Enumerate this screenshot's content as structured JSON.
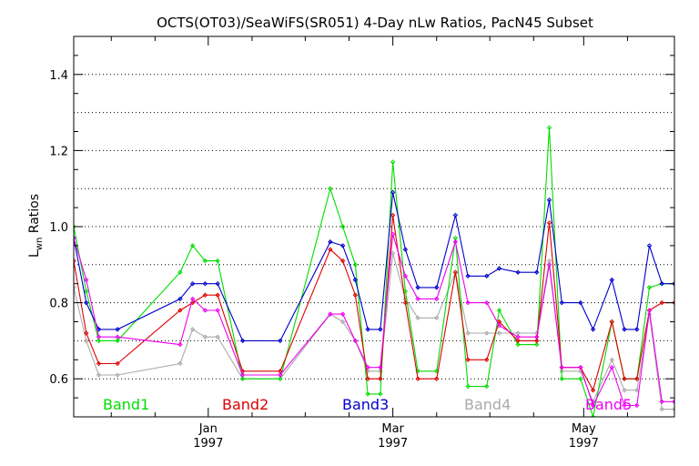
{
  "chart_data": {
    "type": "line",
    "title": "OCTS(OT03)/SeaWiFS(SR051) 4-Day nLw Ratios, PacN45 Subset",
    "ylabel_main": "L",
    "ylabel_sub": "wn",
    "ylabel_rest": " Ratios",
    "ylim": [
      0.5,
      1.5
    ],
    "yticks": [
      0.6,
      0.8,
      1.0,
      1.2,
      1.4
    ],
    "ytick_labels": [
      "0.6",
      "0.8",
      "1.0",
      "1.2",
      "1.4"
    ],
    "grid": "horizontal dotted",
    "xlim": [
      "1996-11-19",
      "1997-05-30"
    ],
    "xticks": [
      {
        "date": "1997-01-01",
        "month": "Jan",
        "year": "1997"
      },
      {
        "date": "1997-03-01",
        "month": "Mar",
        "year": "1997"
      },
      {
        "date": "1997-05-01",
        "month": "May",
        "year": "1997"
      }
    ],
    "x": [
      "1996-11-19",
      "1996-11-23",
      "1996-11-27",
      "1996-12-03",
      "1996-12-23",
      "1996-12-27",
      "1996-12-31",
      "1997-01-04",
      "1997-01-12",
      "1997-01-24",
      "1997-02-09",
      "1997-02-13",
      "1997-02-17",
      "1997-02-21",
      "1997-02-25",
      "1997-03-01",
      "1997-03-05",
      "1997-03-09",
      "1997-03-15",
      "1997-03-21",
      "1997-03-25",
      "1997-03-31",
      "1997-04-04",
      "1997-04-10",
      "1997-04-16",
      "1997-04-20",
      "1997-04-24",
      "1997-04-30",
      "1997-05-04",
      "1997-05-10",
      "1997-05-14",
      "1997-05-18",
      "1997-05-22",
      "1997-05-26",
      "1997-05-30"
    ],
    "series": [
      {
        "name": "Band1",
        "color": "#00dd00",
        "values": [
          1.0,
          0.83,
          0.7,
          0.7,
          0.88,
          0.95,
          0.91,
          0.91,
          0.6,
          0.6,
          1.1,
          1.0,
          0.9,
          0.56,
          0.56,
          1.17,
          0.83,
          0.62,
          0.62,
          0.97,
          0.58,
          0.58,
          0.78,
          0.69,
          0.69,
          1.26,
          0.6,
          0.6,
          0.5,
          0.75,
          0.6,
          0.6,
          0.84,
          0.85,
          0.85
        ]
      },
      {
        "name": "Band2",
        "color": "#dd0000",
        "values": [
          0.91,
          0.72,
          0.64,
          0.64,
          0.78,
          0.8,
          0.82,
          0.82,
          0.62,
          0.62,
          0.94,
          0.91,
          0.82,
          0.6,
          0.6,
          1.03,
          0.8,
          0.6,
          0.6,
          0.88,
          0.65,
          0.65,
          0.75,
          0.7,
          0.7,
          1.01,
          0.63,
          0.63,
          0.57,
          0.75,
          0.6,
          0.6,
          0.78,
          0.8,
          0.8
        ]
      },
      {
        "name": "Band3",
        "color": "#0000cc",
        "values": [
          0.97,
          0.8,
          0.73,
          0.73,
          0.81,
          0.85,
          0.85,
          0.85,
          0.7,
          0.7,
          0.96,
          0.95,
          0.86,
          0.73,
          0.73,
          1.09,
          0.94,
          0.84,
          0.84,
          1.03,
          0.87,
          0.87,
          0.89,
          0.88,
          0.88,
          1.07,
          0.8,
          0.8,
          0.73,
          0.86,
          0.73,
          0.73,
          0.95,
          0.85,
          0.85
        ]
      },
      {
        "name": "Band4",
        "color": "#aaaaaa",
        "values": [
          0.84,
          0.7,
          0.61,
          0.61,
          0.64,
          0.73,
          0.71,
          0.71,
          0.6,
          0.6,
          0.77,
          0.75,
          0.7,
          0.62,
          0.62,
          0.93,
          0.81,
          0.76,
          0.76,
          0.88,
          0.72,
          0.72,
          0.72,
          0.72,
          0.72,
          0.91,
          0.62,
          0.62,
          0.54,
          0.65,
          0.57,
          0.57,
          0.77,
          0.52,
          0.52
        ]
      },
      {
        "name": "Band5",
        "color": "#ee00ee",
        "values": [
          0.97,
          0.86,
          0.71,
          0.71,
          0.69,
          0.81,
          0.78,
          0.78,
          0.61,
          0.61,
          0.77,
          0.77,
          0.7,
          0.63,
          0.63,
          0.98,
          0.87,
          0.81,
          0.81,
          0.96,
          0.8,
          0.8,
          0.74,
          0.71,
          0.71,
          0.9,
          0.63,
          0.63,
          0.53,
          0.63,
          0.53,
          0.53,
          0.78,
          0.54,
          0.54
        ]
      }
    ],
    "legend": [
      {
        "label": "Band1",
        "color": "#00dd00"
      },
      {
        "label": "Band2",
        "color": "#dd0000"
      },
      {
        "label": "Band3",
        "color": "#0000cc"
      },
      {
        "label": "Band4",
        "color": "#aaaaaa"
      },
      {
        "label": "Band5",
        "color": "#ee00ee"
      }
    ]
  }
}
